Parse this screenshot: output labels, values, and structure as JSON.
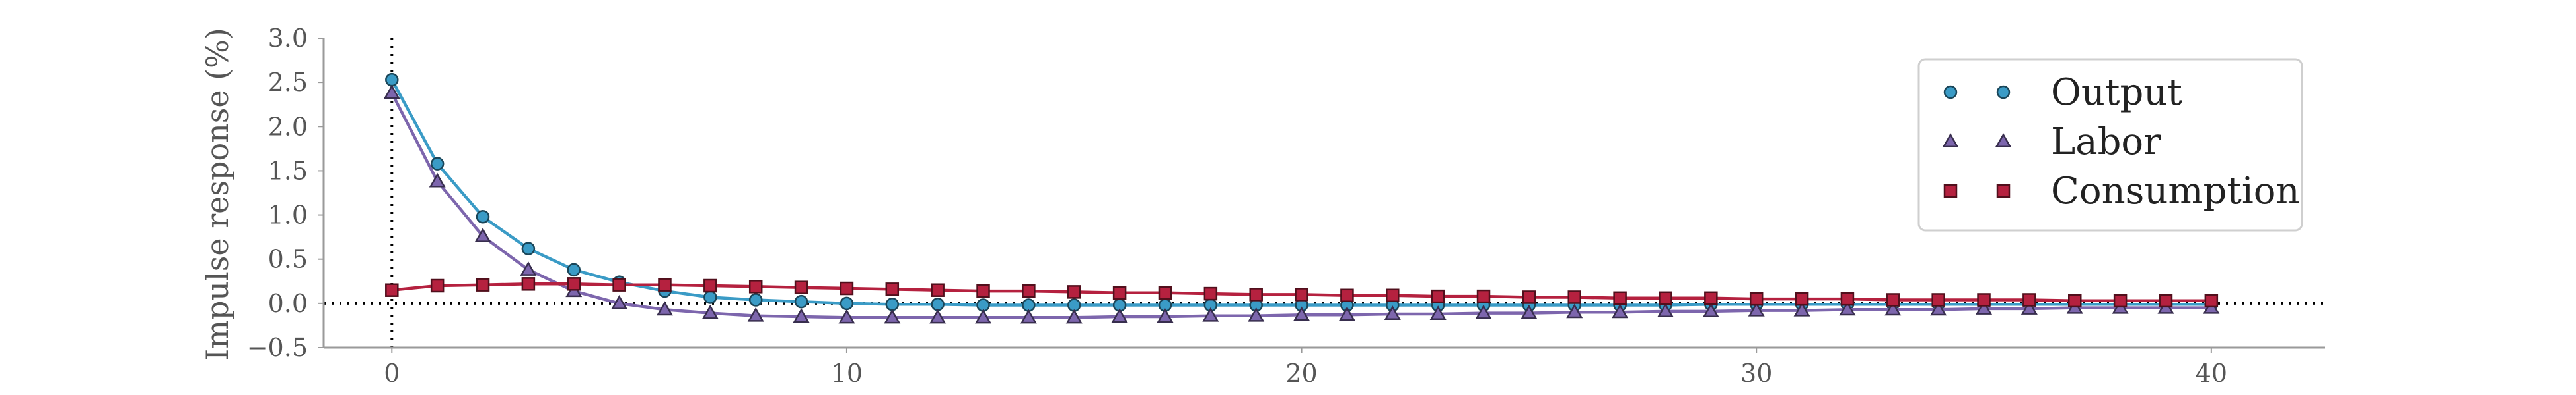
{
  "chart_data": {
    "type": "line",
    "xlabel": "",
    "ylabel": "Impulse response (%)",
    "xlim": [
      -1.5,
      42.5
    ],
    "ylim": [
      -0.5,
      3.0
    ],
    "xticks": [
      0,
      10,
      20,
      30,
      40
    ],
    "xtick_labels": [
      "0",
      "10",
      "20",
      "30",
      "40"
    ],
    "yticks": [
      -0.5,
      0.0,
      0.5,
      1.0,
      1.5,
      2.0,
      2.5,
      3.0
    ],
    "ytick_labels": [
      "−0.5",
      "0.0",
      "0.5",
      "1.0",
      "1.5",
      "2.0",
      "2.5",
      "3.0"
    ],
    "grid": false,
    "legend_position": "top-right",
    "reference_lines": {
      "horizontal_y": 0,
      "vertical_x": 0,
      "style": "dotted"
    },
    "x": [
      0,
      1,
      2,
      3,
      4,
      5,
      6,
      7,
      8,
      9,
      10,
      11,
      12,
      13,
      14,
      15,
      16,
      17,
      18,
      19,
      20,
      21,
      22,
      23,
      24,
      25,
      26,
      27,
      28,
      29,
      30,
      31,
      32,
      33,
      34,
      35,
      36,
      37,
      38,
      39,
      40
    ],
    "series": [
      {
        "name": "Output",
        "marker": "circle",
        "color": "#3a9bc6",
        "values": [
          2.53,
          1.58,
          0.98,
          0.62,
          0.38,
          0.24,
          0.14,
          0.07,
          0.04,
          0.02,
          0.0,
          -0.01,
          -0.01,
          -0.02,
          -0.02,
          -0.02,
          -0.02,
          -0.02,
          -0.02,
          -0.02,
          -0.02,
          -0.02,
          -0.02,
          -0.02,
          -0.02,
          -0.02,
          -0.02,
          -0.02,
          -0.02,
          -0.01,
          -0.01,
          -0.01,
          -0.01,
          -0.01,
          -0.01,
          -0.01,
          -0.01,
          -0.01,
          -0.01,
          -0.01,
          -0.01
        ]
      },
      {
        "name": "Labor",
        "marker": "triangle",
        "color": "#7d66ad",
        "values": [
          2.38,
          1.38,
          0.76,
          0.38,
          0.14,
          0.0,
          -0.07,
          -0.11,
          -0.14,
          -0.15,
          -0.16,
          -0.16,
          -0.16,
          -0.16,
          -0.16,
          -0.16,
          -0.15,
          -0.15,
          -0.14,
          -0.14,
          -0.13,
          -0.13,
          -0.12,
          -0.12,
          -0.11,
          -0.11,
          -0.1,
          -0.1,
          -0.09,
          -0.09,
          -0.08,
          -0.08,
          -0.07,
          -0.07,
          -0.07,
          -0.06,
          -0.06,
          -0.05,
          -0.05,
          -0.05,
          -0.05
        ]
      },
      {
        "name": "Consumption",
        "marker": "square",
        "color": "#b5213f",
        "values": [
          0.15,
          0.2,
          0.21,
          0.22,
          0.22,
          0.21,
          0.21,
          0.2,
          0.19,
          0.18,
          0.17,
          0.16,
          0.15,
          0.14,
          0.14,
          0.13,
          0.12,
          0.12,
          0.11,
          0.1,
          0.1,
          0.09,
          0.09,
          0.08,
          0.08,
          0.07,
          0.07,
          0.06,
          0.06,
          0.06,
          0.05,
          0.05,
          0.05,
          0.04,
          0.04,
          0.04,
          0.04,
          0.03,
          0.03,
          0.03,
          0.03
        ]
      }
    ]
  }
}
